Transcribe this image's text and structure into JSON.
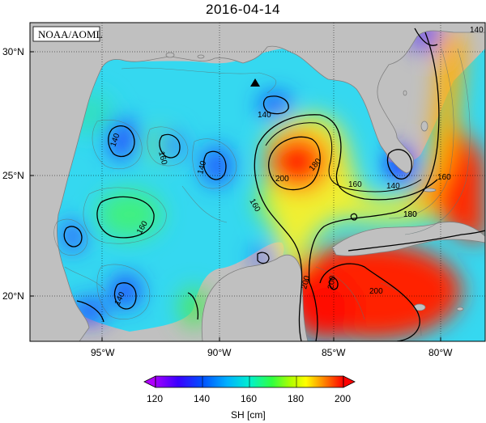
{
  "title": "2016-04-14",
  "badge": "NOAA/AOML",
  "lat_ticks": [
    "30°N",
    "25°N",
    "20°N"
  ],
  "lon_ticks": [
    "95°W",
    "90°W",
    "85°W",
    "80°W"
  ],
  "contour_labels": [
    "140",
    "160",
    "140",
    "160",
    "140",
    "140",
    "180",
    "160",
    "200",
    "180",
    "160",
    "140",
    "180",
    "160",
    "140",
    "200",
    "200",
    "200"
  ],
  "colorbar": {
    "ticks": [
      "120",
      "140",
      "160",
      "180",
      "200"
    ],
    "label": "SH [cm]",
    "colors": [
      "#c000ff",
      "#3300ff",
      "#0080ff",
      "#00e0ff",
      "#00ff80",
      "#40ff00",
      "#ffff00",
      "#ff8000",
      "#ff0000"
    ]
  },
  "marker": "triangle"
}
